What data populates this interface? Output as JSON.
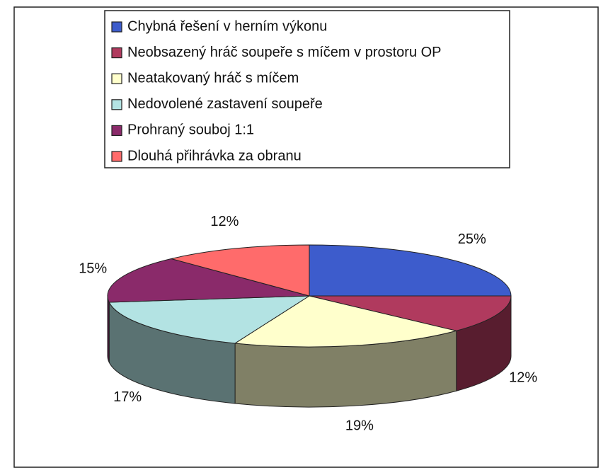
{
  "chart_data": {
    "type": "pie",
    "categories": [
      "Chybná řešení v herním výkonu",
      "Neobsazený hráč soupeře s míčem v prostoru OP",
      "Neatakovaný hráč s míčem",
      "Nedovolené zastavení soupeře",
      "Prohraný souboj 1:1",
      "Dlouhá přihrávka za obranu"
    ],
    "values": [
      25,
      12,
      19,
      17,
      15,
      12
    ],
    "value_labels": [
      "25%",
      "12%",
      "19%",
      "17%",
      "15%",
      "12%"
    ],
    "colors": [
      "#3d5ccc",
      "#b03a5e",
      "#ffffcc",
      "#b3e3e3",
      "#8a2a6a",
      "#ff6b6b"
    ],
    "legend": "top"
  }
}
